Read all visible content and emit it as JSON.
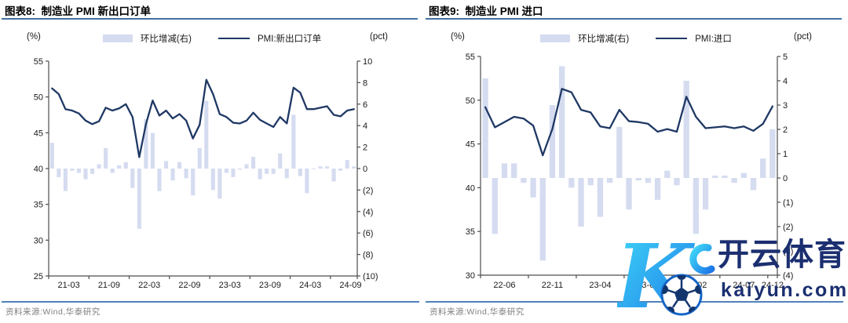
{
  "colors": {
    "line": "#1F3864",
    "bar": "#D5DCF0",
    "axis": "#4d4d4d",
    "tick_text": "#1a1a1a",
    "title_rule": "#41719c",
    "source_rule": "#4f81bd",
    "source_text": "#808080",
    "watermark_text": "#1b2f70",
    "watermark_grad_start": "#3fd8f7",
    "watermark_grad_end": "#1e78e8"
  },
  "panels": [
    {
      "title": "图表8:  制造业 PMI 新出口订单",
      "left_axis_unit": "(%)",
      "right_axis_unit": "(pct)",
      "legend": {
        "bars": "环比增减(右)",
        "line": "PMI:新出口订单"
      },
      "source": "资料来源:Wind,华泰研究"
    },
    {
      "title": "图表9:  制造业 PMI 进口",
      "left_axis_unit": "(%)",
      "right_axis_unit": "(pct)",
      "legend": {
        "bars": "环比增减(右)",
        "line": "PMI:进口"
      },
      "source": "资料来源:Wind,华泰研究"
    }
  ],
  "watermark": {
    "brand": "开云体育",
    "domain": "kaiyun.com"
  },
  "chart_data": [
    {
      "type": "combo_bar_line",
      "title": "制造业 PMI 新出口订单",
      "left_axis": {
        "unit": "(%)",
        "min": 25,
        "max": 55,
        "tick_values": [
          55,
          50,
          45,
          40,
          35,
          30,
          25
        ],
        "tick_labels": [
          "55",
          "50",
          "45",
          "40",
          "35",
          "30",
          "25"
        ]
      },
      "right_axis": {
        "unit": "(pct)",
        "min": -10,
        "max": 10,
        "tick_values": [
          10,
          8,
          6,
          4,
          2,
          0,
          -2,
          -4,
          -6,
          -8,
          -10
        ],
        "tick_labels": [
          "10",
          "8",
          "6",
          "4",
          "2",
          "0",
          "(2)",
          "(4)",
          "(6)",
          "(8)",
          "(10)"
        ]
      },
      "x": {
        "tick_step": 6,
        "tick_labels": [
          "21-03",
          "21-09",
          "22-03",
          "22-09",
          "23-03",
          "23-09",
          "24-03",
          "24-09"
        ],
        "months": [
          "21-03",
          "21-04",
          "21-05",
          "21-06",
          "21-07",
          "21-08",
          "21-09",
          "21-10",
          "21-11",
          "21-12",
          "22-01",
          "22-02",
          "22-03",
          "22-04",
          "22-05",
          "22-06",
          "22-07",
          "22-08",
          "22-09",
          "22-10",
          "22-11",
          "22-12",
          "23-01",
          "23-02",
          "23-03",
          "23-04",
          "23-05",
          "23-06",
          "23-07",
          "23-08",
          "23-09",
          "23-10",
          "23-11",
          "23-12",
          "24-01",
          "24-02",
          "24-03",
          "24-04",
          "24-05",
          "24-06",
          "24-07",
          "24-08",
          "24-09",
          "24-10",
          "24-11",
          "24-12"
        ]
      },
      "series": [
        {
          "name": "环比增减(右)",
          "kind": "bar",
          "axis": "right",
          "values": [
            2.4,
            -0.8,
            -2.1,
            -0.2,
            -0.4,
            -1.0,
            -0.5,
            0.4,
            1.9,
            -0.4,
            0.3,
            0.6,
            -1.8,
            -5.6,
            4.6,
            3.3,
            -2.1,
            0.7,
            -1.1,
            0.6,
            -0.9,
            -2.5,
            1.9,
            6.3,
            -2.0,
            -2.8,
            -0.4,
            -0.8,
            -0.1,
            0.4,
            1.1,
            -1.0,
            -0.5,
            -0.5,
            1.4,
            -0.9,
            5.0,
            -0.7,
            -2.3,
            0.0,
            0.2,
            0.2,
            -1.2,
            -0.2,
            0.8,
            0.2
          ]
        },
        {
          "name": "PMI:新出口订单",
          "kind": "line",
          "axis": "left",
          "values": [
            51.2,
            50.4,
            48.3,
            48.1,
            47.7,
            46.7,
            46.2,
            46.6,
            48.5,
            48.1,
            48.4,
            49.0,
            47.2,
            41.6,
            46.2,
            49.5,
            47.4,
            48.1,
            47.0,
            47.6,
            46.7,
            44.2,
            46.1,
            52.4,
            50.4,
            47.6,
            47.2,
            46.4,
            46.3,
            46.7,
            47.8,
            46.8,
            46.3,
            45.8,
            47.2,
            46.3,
            51.3,
            50.6,
            48.3,
            48.3,
            48.5,
            48.7,
            47.5,
            47.3,
            48.1,
            48.3
          ]
        }
      ]
    },
    {
      "type": "combo_bar_line",
      "title": "制造业 PMI 进口",
      "left_axis": {
        "unit": "(%)",
        "min": 30,
        "max": 55,
        "tick_values": [
          55,
          50,
          45,
          40,
          35,
          30
        ],
        "tick_labels": [
          "55",
          "50",
          "45",
          "40",
          "35",
          "30"
        ]
      },
      "right_axis": {
        "unit": "(pct)",
        "min": -4,
        "max": 5,
        "tick_values": [
          5,
          4,
          3,
          2,
          1,
          0,
          -1,
          -2,
          -3,
          -4
        ],
        "tick_labels": [
          "5",
          "4",
          "3",
          "2",
          "1",
          "0",
          "(1)",
          "(2)",
          "(3)",
          "(4)"
        ]
      },
      "x": {
        "tick_step": 5,
        "tick_labels": [
          "22-06",
          "22-11",
          "23-04",
          "23-09",
          "24-02",
          "24-07",
          "24-12"
        ],
        "months": [
          "22-06",
          "22-07",
          "22-08",
          "22-09",
          "22-10",
          "22-11",
          "22-12",
          "23-01",
          "23-02",
          "23-03",
          "23-04",
          "23-05",
          "23-06",
          "23-07",
          "23-08",
          "23-09",
          "23-10",
          "23-11",
          "23-12",
          "24-01",
          "24-02",
          "24-03",
          "24-04",
          "24-05",
          "24-06",
          "24-07",
          "24-08",
          "24-09",
          "24-10",
          "24-11",
          "24-12"
        ]
      },
      "series": [
        {
          "name": "环比增减(右)",
          "kind": "bar",
          "axis": "right",
          "values": [
            4.1,
            -2.3,
            0.6,
            0.6,
            -0.2,
            -0.8,
            -3.4,
            3.0,
            4.6,
            -0.4,
            -2.0,
            -0.3,
            -1.6,
            -0.2,
            2.1,
            -1.3,
            -0.1,
            -0.2,
            -0.9,
            0.3,
            -0.3,
            4.0,
            -2.3,
            -1.3,
            0.1,
            0.1,
            -0.2,
            0.2,
            -0.5,
            0.8,
            2.0
          ]
        },
        {
          "name": "PMI:进口",
          "kind": "line",
          "axis": "left",
          "values": [
            49.2,
            46.9,
            47.5,
            48.1,
            47.9,
            47.1,
            43.7,
            46.7,
            51.3,
            50.9,
            48.9,
            48.6,
            47.0,
            46.8,
            48.9,
            47.6,
            47.5,
            47.3,
            46.4,
            46.7,
            46.4,
            50.4,
            48.1,
            46.8,
            46.9,
            47.0,
            46.8,
            47.0,
            46.5,
            47.3,
            49.3
          ]
        }
      ]
    }
  ]
}
